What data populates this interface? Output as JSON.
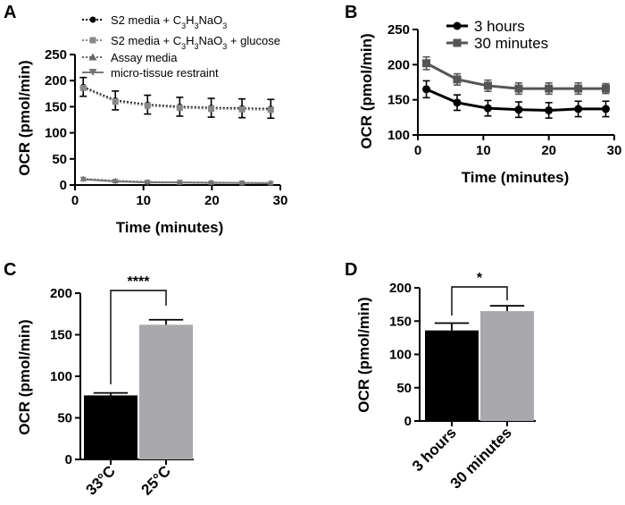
{
  "chart_data": [
    {
      "panel": "A",
      "type": "line",
      "xlabel": "Time (minutes)",
      "ylabel": "OCR (pmol/min)",
      "xlim": [
        0,
        30
      ],
      "ylim": [
        0,
        250
      ],
      "xticks": [
        "0",
        "10",
        "20",
        "30"
      ],
      "yticks": [
        "0",
        "50",
        "100",
        "150",
        "200",
        "250"
      ],
      "x": [
        1.2,
        5.9,
        10.6,
        15.3,
        19.9,
        24.4,
        28.6
      ],
      "legend": [
        {
          "name": "S2 media + C",
          "sub1": "3",
          "mid1": "H",
          "sub2": "3",
          "tail": "NaO",
          "sub3": "3",
          "after": ""
        },
        {
          "name": "S2 media + C",
          "sub1": "3",
          "mid1": "H",
          "sub2": "3",
          "tail": "NaO",
          "sub3": "3",
          "after": " + glucose"
        },
        {
          "name": "Assay media"
        },
        {
          "name": "micro-tissue restraint"
        }
      ],
      "series": [
        {
          "name": "S2 media + C3H3NaO3",
          "marker": "circle",
          "color": "#000000",
          "values": [
            188,
            162,
            154,
            150,
            148,
            147,
            146
          ],
          "errors": [
            18,
            18,
            18,
            18,
            18,
            18,
            18
          ]
        },
        {
          "name": "S2 media + C3H3NaO3 + glucose",
          "marker": "square",
          "color": "#888888",
          "values": [
            186,
            160,
            152,
            148,
            146,
            145,
            144
          ],
          "errors": [
            0,
            0,
            0,
            0,
            0,
            0,
            0
          ]
        },
        {
          "name": "Assay media",
          "marker": "triangle-up",
          "color": "#666666",
          "values": [
            12,
            8,
            6,
            5,
            5,
            4,
            4
          ],
          "errors": [
            0,
            0,
            0,
            0,
            0,
            0,
            0
          ]
        },
        {
          "name": "micro-tissue restraint",
          "marker": "triangle-down",
          "color": "#777777",
          "values": [
            11,
            7,
            5,
            5,
            4,
            4,
            3
          ],
          "errors": [
            0,
            0,
            0,
            0,
            0,
            0,
            0
          ]
        }
      ]
    },
    {
      "panel": "B",
      "type": "line",
      "xlabel": "Time (minutes)",
      "ylabel": "OCR (pmol/min)",
      "xlim": [
        0,
        30
      ],
      "ylim": [
        100,
        250
      ],
      "xticks": [
        "0",
        "10",
        "20",
        "30"
      ],
      "yticks": [
        "100",
        "150",
        "200",
        "250"
      ],
      "x": [
        1.3,
        6.0,
        10.7,
        15.4,
        20.0,
        24.5,
        28.7
      ],
      "series": [
        {
          "name": "3 hours",
          "marker": "circle",
          "color": "#000000",
          "values": [
            165,
            146,
            138,
            136,
            135,
            137,
            137
          ],
          "errors": [
            12,
            11,
            11,
            11,
            11,
            11,
            11
          ]
        },
        {
          "name": "30 minutes",
          "marker": "square",
          "color": "#555555",
          "values": [
            202,
            179,
            170,
            166,
            166,
            166,
            166
          ],
          "errors": [
            9,
            8,
            8,
            8,
            8,
            8,
            7
          ]
        }
      ]
    },
    {
      "panel": "C",
      "type": "bar",
      "ylabel": "OCR (pmol/min)",
      "ylim": [
        0,
        200
      ],
      "yticks": [
        "0",
        "50",
        "100",
        "150",
        "200"
      ],
      "categories": [
        "33°C",
        "25°C"
      ],
      "values": [
        77,
        162
      ],
      "errors": [
        3,
        6
      ],
      "colors": [
        "#000000",
        "#a9a9ad"
      ],
      "significance": "****"
    },
    {
      "panel": "D",
      "type": "bar",
      "ylabel": "OCR (pmol/min)",
      "ylim": [
        0,
        200
      ],
      "yticks": [
        "0",
        "50",
        "100",
        "150",
        "200"
      ],
      "categories": [
        "3 hours",
        "30 minutes"
      ],
      "values": [
        136,
        165
      ],
      "errors": [
        11,
        8
      ],
      "colors": [
        "#000000",
        "#a9a9ad"
      ],
      "significance": "*"
    }
  ]
}
